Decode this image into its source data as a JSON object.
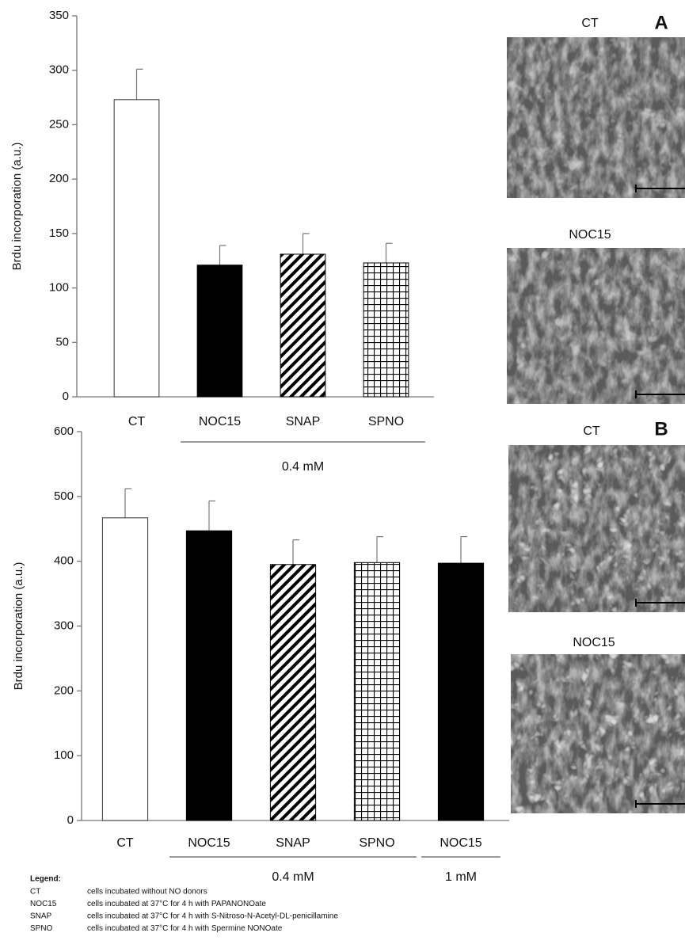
{
  "chart_data": [
    {
      "type": "bar",
      "ylabel": "Brdu incorporation (a.u.)",
      "categories": [
        "CT",
        "NOC15",
        "SNAP",
        "SPNO"
      ],
      "values": [
        273,
        121,
        131,
        123
      ],
      "errors": [
        28,
        18,
        19,
        18
      ],
      "fills": [
        "white",
        "black",
        "hatch",
        "grid"
      ],
      "groups": [
        {
          "label": "0.4 mM",
          "start": 1,
          "end": 3
        }
      ],
      "ylim": [
        0,
        350
      ],
      "yticks": [
        0,
        50,
        100,
        150,
        200,
        250,
        300,
        350
      ]
    },
    {
      "type": "bar",
      "ylabel": "Brdu incorporation (a.u.)",
      "categories": [
        "CT",
        "NOC15",
        "SNAP",
        "SPNO",
        "NOC15"
      ],
      "values": [
        467,
        447,
        395,
        398,
        397
      ],
      "errors": [
        45,
        46,
        38,
        40,
        41
      ],
      "fills": [
        "white",
        "black",
        "hatch",
        "grid",
        "black"
      ],
      "groups": [
        {
          "label": "0.4 mM",
          "start": 1,
          "end": 3
        },
        {
          "label": "1 mM",
          "start": 4,
          "end": 4
        }
      ],
      "ylim": [
        0,
        600
      ],
      "yticks": [
        0,
        100,
        200,
        300,
        400,
        500,
        600
      ]
    }
  ],
  "figure": {
    "panels": [
      {
        "letter": "A",
        "images": [
          "CT",
          "NOC15"
        ]
      },
      {
        "letter": "B",
        "images": [
          "CT",
          "NOC15"
        ]
      }
    ],
    "legend": {
      "title": "Legend:",
      "rows": [
        [
          "CT",
          "cells incubated without NO donors"
        ],
        [
          "NOC15",
          "cells incubated at 37°C for 4 h with PAPANONOate"
        ],
        [
          "SNAP",
          "cells incubated at 37°C for 4 h with S-Nitroso-N-Acetyl-DL-penicillamine"
        ],
        [
          "SPNO",
          "cells incubated at 37°C for 4 h with Spermine NONOate"
        ]
      ]
    }
  }
}
